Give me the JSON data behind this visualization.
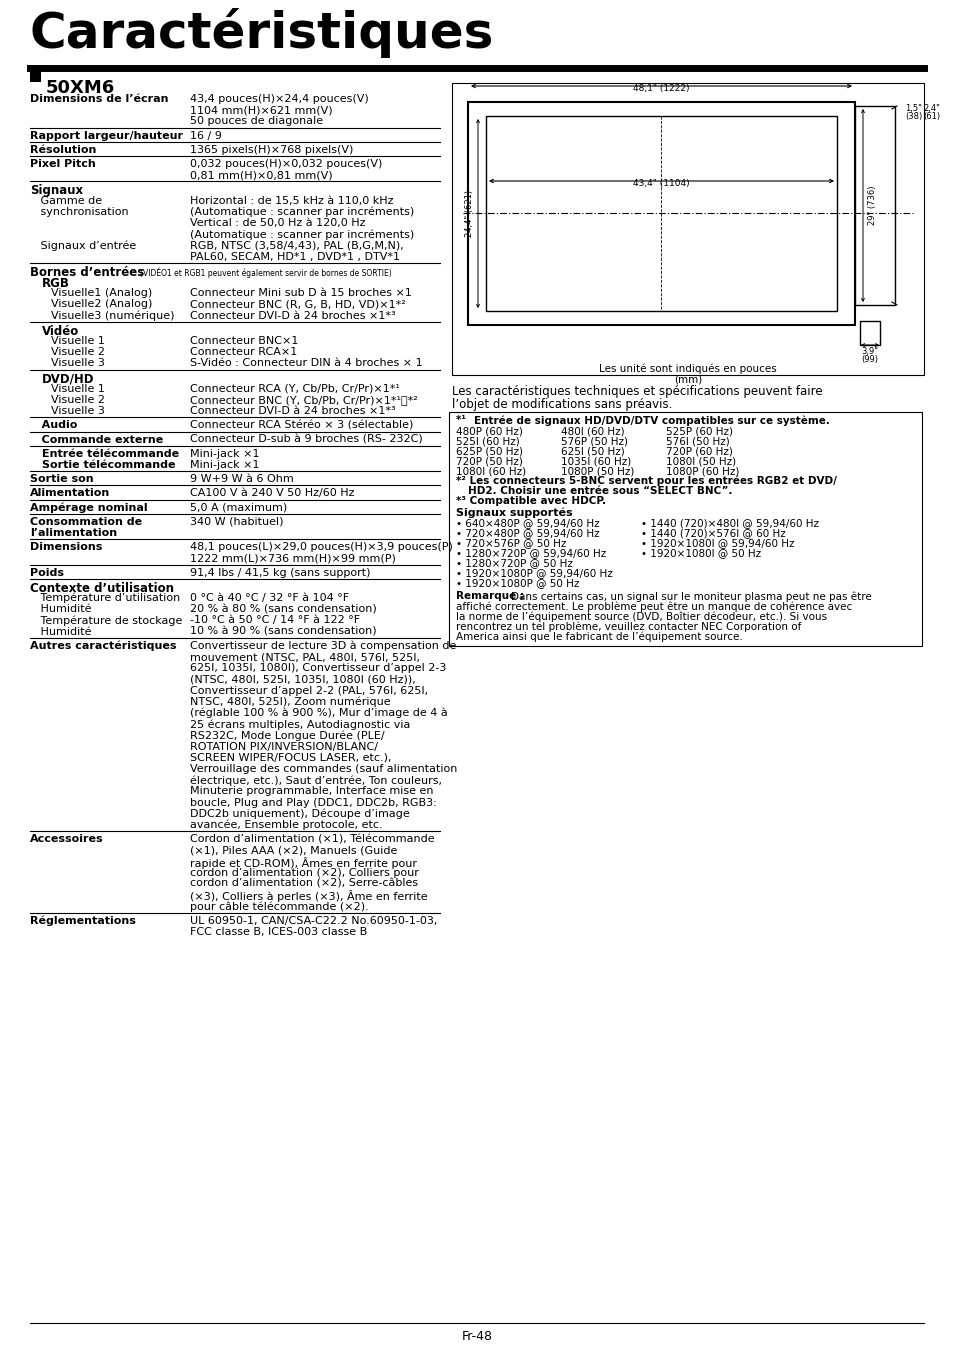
{
  "title": "Caractéristiques",
  "subtitle": "50XM6",
  "page_num": "Fr-48",
  "bg_color": "#ffffff",
  "left_specs": [
    {
      "type": "row",
      "label": "Dimensions de l’écran",
      "bold": true,
      "value": "43,4 pouces(H)×24,4 pouces(V)\n1104 mm(H)×621 mm(V)\n50 pouces de diagonale",
      "sep": true
    },
    {
      "type": "row",
      "label": "Rapport largeur/hauteur",
      "bold": true,
      "value": "16 / 9",
      "sep": true
    },
    {
      "type": "row",
      "label": "Résolution",
      "bold": true,
      "value": "1365 pixels(H)×768 pixels(V)",
      "sep": true
    },
    {
      "type": "row",
      "label": "Pixel Pitch",
      "bold": true,
      "value": "0,032 pouces(H)×0,032 pouces(V)\n0,81 mm(H)×0,81 mm(V)",
      "sep": true
    },
    {
      "type": "section",
      "label": "Signaux",
      "sep": false
    },
    {
      "type": "row",
      "label": "   Gamme de\n   synchronisation",
      "bold": false,
      "value": "Horizontal : de 15,5 kHz à 110,0 kHz\n(Automatique : scanner par incréments)\nVertical : de 50,0 Hz à 120,0 Hz\n(Automatique : scanner par incréments)",
      "sep": false
    },
    {
      "type": "row",
      "label": "   Signaux d’entrée",
      "bold": false,
      "value": "RGB, NTSC (3,58/4,43), PAL (B,G,M,N),\nPAL60, SECAM, HD*1 , DVD*1 , DTV*1",
      "sep": true
    },
    {
      "type": "bornes",
      "label": "Bornes d’entrées",
      "note": "(VIDÉO1 et RGB1 peuvent également servir de bornes de SORTIE)",
      "sep": false
    },
    {
      "type": "subsection",
      "label": "   RGB",
      "sep": false
    },
    {
      "type": "row",
      "label": "      Visuelle1 (Analog)",
      "bold": false,
      "value": "Connecteur Mini sub D à 15 broches ×1",
      "sep": false
    },
    {
      "type": "row",
      "label": "      Visuelle2 (Analog)",
      "bold": false,
      "value": "Connecteur BNC (R, G, B, HD, VD)×1*²",
      "sep": false
    },
    {
      "type": "row",
      "label": "      Visuelle3 (numérique)",
      "bold": false,
      "value": "Connecteur DVI-D à 24 broches ×1*³",
      "sep": true
    },
    {
      "type": "subsection",
      "label": "   Vidéo",
      "sep": false
    },
    {
      "type": "row",
      "label": "      Visuelle 1",
      "bold": false,
      "value": "Connecteur BNC×1",
      "sep": false
    },
    {
      "type": "row",
      "label": "      Visuelle 2",
      "bold": false,
      "value": "Connecteur RCA×1",
      "sep": false
    },
    {
      "type": "row",
      "label": "      Visuelle 3",
      "bold": false,
      "value": "S-Vidéo : Connecteur DIN à 4 broches × 1",
      "sep": true
    },
    {
      "type": "subsection",
      "label": "   DVD/HD",
      "sep": false
    },
    {
      "type": "row",
      "label": "      Visuelle 1",
      "bold": false,
      "value": "Connecteur RCA (Y, Cb/Pb, Cr/Pr)×1*¹",
      "sep": false
    },
    {
      "type": "row",
      "label": "      Visuelle 2",
      "bold": false,
      "value": "Connecteur BNC (Y, Cb/Pb, Cr/Pr)×1*¹，*²",
      "sep": false
    },
    {
      "type": "row",
      "label": "      Visuelle 3",
      "bold": false,
      "value": "Connecteur DVI-D à 24 broches ×1*³",
      "sep": true
    },
    {
      "type": "row",
      "label": "   Audio",
      "bold": true,
      "value": "Connecteur RCA Stéréo × 3 (sélectable)",
      "sep": true
    },
    {
      "type": "row",
      "label": "   Commande externe",
      "bold": true,
      "value": "Connecteur D-sub à 9 broches (RS- 232C)",
      "sep": true
    },
    {
      "type": "row2",
      "label1": "   Entrée télécommande",
      "val1": "Mini-jack ×1",
      "label2": "   Sortie télécommande",
      "val2": "Mini-jack ×1",
      "sep": true
    },
    {
      "type": "row",
      "label": "Sortie son",
      "bold": true,
      "value": "9 W+9 W à 6 Ohm",
      "sep": true
    },
    {
      "type": "row",
      "label": "Alimentation",
      "bold": true,
      "value": "CA100 V à 240 V 50 Hz/60 Hz",
      "sep": true
    },
    {
      "type": "row",
      "label": "Ampérage nominal",
      "bold": true,
      "value": "5,0 A (maximum)",
      "sep": true
    },
    {
      "type": "row",
      "label": "Consommation de\nl’alimentation",
      "bold": true,
      "value": "340 W (habituel)",
      "sep": true
    },
    {
      "type": "row",
      "label": "Dimensions",
      "bold": true,
      "value": "48,1 pouces(L)×29,0 pouces(H)×3,9 pouces(P)\n1222 mm(L)×736 mm(H)×99 mm(P)",
      "sep": true
    },
    {
      "type": "row",
      "label": "Poids",
      "bold": true,
      "value": "91,4 lbs / 41,5 kg (sans support)",
      "sep": true
    },
    {
      "type": "section",
      "label": "Contexte d’utilisation",
      "sep": false
    },
    {
      "type": "row",
      "label": "   Température d’utilisation",
      "bold": false,
      "value": "0 °C à 40 °C / 32 °F à 104 °F",
      "sep": false
    },
    {
      "type": "row",
      "label": "   Humidité",
      "bold": false,
      "value": "20 % à 80 % (sans condensation)",
      "sep": false
    },
    {
      "type": "row",
      "label": "   Température de stockage",
      "bold": false,
      "value": "-10 °C à 50 °C / 14 °F à 122 °F",
      "sep": false
    },
    {
      "type": "row",
      "label": "   Humidité",
      "bold": false,
      "value": "10 % à 90 % (sans condensation)",
      "sep": true
    },
    {
      "type": "row",
      "label": "Autres caractéristiques",
      "bold": true,
      "value": "Convertisseur de lecture 3D à compensation de\nmouvement (NTSC, PAL, 480I, 576I, 525I,\n625I, 1035I, 1080I), Convertisseur d’appel 2-3\n(NTSC, 480I, 525I, 1035I, 1080I (60 Hz)),\nConvertisseur d’appel 2-2 (PAL, 576I, 625I,\nNTSC, 480I, 525I), Zoom numérique\n(réglable 100 % à 900 %), Mur d’image de 4 à\n25 écrans multiples, Autodiagnostic via\nRS232C, Mode Longue Durée (PLE/\nROTATION PIX/INVERSION/BLANC/\nSCREEN WIPER/FOCUS LASER, etc.),\nVerrouillage des commandes (sauf alimentation\nélectrique, etc.), Saut d’entrée, Ton couleurs,\nMinuterie programmable, Interface mise en\nboucle, Plug and Play (DDC1, DDC2b, RGB3:\nDDC2b uniquement), Découpe d’image\navancée, Ensemble protocole, etc.",
      "sep": true
    },
    {
      "type": "row",
      "label": "Accessoires",
      "bold": true,
      "value": "Cordon d’alimentation (×1), Télécommande\n(×1), Piles AAA (×2), Manuels (Guide\nrapide et CD-ROM), Âmes en ferrite pour\ncordon d’alimentation (×2), Colliers pour\ncordon d’alimentation (×2), Serre-câbles\n(×3), Colliers à perles (×3), Âme en ferrite\npour câble télécommande (×2).",
      "sep": true
    },
    {
      "type": "row",
      "label": "Réglementations",
      "bold": true,
      "value": "UL 60950-1, CAN/CSA-C22.2 No.60950-1-03,\nFCC classe B, ICES-003 classe B",
      "sep": false
    }
  ],
  "disclaimer": "Les caractéristiques techniques et spécifications peuvent faire\nl’objet de modifications sans préavis.",
  "notes_box": {
    "line1_bold": "*¹ Entrée de signaux HD/DVD/DTV compatibles sur ce système.",
    "signals_3col": [
      [
        "480P (60 Hz)",
        "480I (60 Hz)",
        "525P (60 Hz)"
      ],
      [
        "525I (60 Hz)",
        "576P (50 Hz)",
        "576I (50 Hz)"
      ],
      [
        "625P (50 Hz)",
        "625I (50 Hz)",
        "720P (60 Hz)"
      ],
      [
        "720P (50 Hz)",
        "1035I (60 Hz)",
        "1080I (50 Hz)"
      ],
      [
        "1080I (60 Hz)",
        "1080P (50 Hz)",
        "1080P (60 Hz)"
      ]
    ],
    "note2_bold": "*² Les connecteurs 5-BNC servent pour les entrées RGB2 et DVD/",
    "note2_cont": "HD2. Choisir une entrée sous “SELECT BNC”.",
    "note3_bold": "*³ Compatible avec HDCP.",
    "signaux_sup_title": "Signaux supportés",
    "signaux_sup_left": [
      "• 640×480P @ 59,94/60 Hz",
      "• 720×480P @ 59,94/60 Hz",
      "• 720×576P @ 50 Hz",
      "• 1280×720P @ 59,94/60 Hz",
      "• 1280×720P @ 50 Hz",
      "• 1920×1080P @ 59,94/60 Hz",
      "• 1920×1080P @ 50 Hz"
    ],
    "signaux_sup_right": [
      "• 1440 (720)×480I @ 59,94/60 Hz",
      "• 1440 (720)×576I @ 60 Hz",
      "• 1920×1080I @ 59,94/60 Hz",
      "• 1920×1080I @ 50 Hz"
    ],
    "remarque_bold": "Remarque :",
    "remarque_rest": " Dans certains cas, un signal sur le moniteur plasma peut ne pas être affiché correctement. Le problème peut être un manque de cohérence avec la norme de l’équipement source (DVD, Boîtier décodeur, etc.). Si vous rencontrez un tel problème, veuillez contacter NEC Corporation of America ainsi que le fabricant de l’équipement source."
  }
}
